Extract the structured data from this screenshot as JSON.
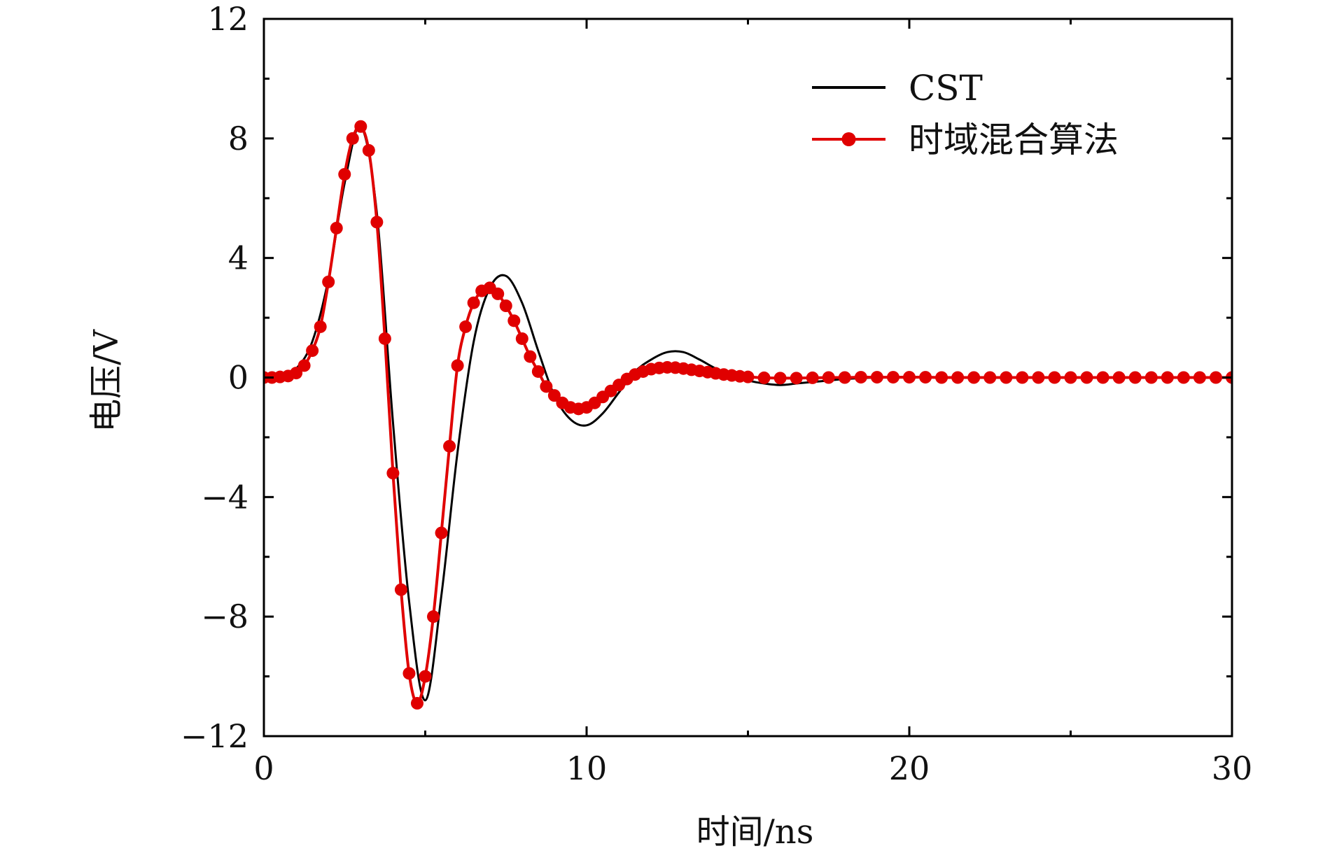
{
  "chart_data": {
    "type": "line",
    "xlabel": "时间/ns",
    "ylabel": "电压/V",
    "xlim": [
      0,
      30
    ],
    "ylim": [
      -12,
      12
    ],
    "x_ticks": [
      0,
      10,
      20,
      30
    ],
    "y_ticks": [
      -12,
      -8,
      -4,
      0,
      4,
      8,
      12
    ],
    "x_tick_labels": [
      "0",
      "10",
      "20",
      "30"
    ],
    "y_tick_labels": [
      "−12",
      "−8",
      "−4",
      "0",
      "4",
      "8",
      "12"
    ],
    "grid": false,
    "legend_position": "top-right",
    "series": [
      {
        "name": "CST",
        "color": "#000000",
        "marker": "none",
        "x": [
          0,
          0.5,
          1.0,
          1.5,
          2.0,
          2.5,
          3.0,
          3.5,
          4.0,
          4.5,
          5.0,
          5.5,
          6.0,
          6.5,
          7.0,
          7.5,
          8.0,
          8.5,
          9.0,
          9.5,
          10.0,
          10.5,
          11.0,
          11.5,
          12.0,
          12.5,
          13.0,
          13.5,
          14.0,
          14.5,
          15.0,
          15.5,
          16.0,
          16.5,
          17.0,
          17.5,
          18.0,
          19.0,
          20.0,
          22.0,
          25.0,
          28.0,
          30.0
        ],
        "y": [
          0.0,
          0.05,
          0.3,
          1.2,
          3.3,
          6.5,
          8.4,
          5.5,
          -1.5,
          -7.5,
          -10.8,
          -7.3,
          -2.5,
          1.2,
          3.0,
          3.4,
          2.5,
          0.9,
          -0.6,
          -1.4,
          -1.6,
          -1.2,
          -0.5,
          0.2,
          0.6,
          0.85,
          0.85,
          0.6,
          0.3,
          0.05,
          -0.1,
          -0.2,
          -0.25,
          -0.2,
          -0.15,
          -0.1,
          -0.05,
          0.0,
          0.02,
          0.0,
          0.0,
          0.0,
          0.0
        ]
      },
      {
        "name": "时域混合算法",
        "color": "#e00000",
        "marker": "circle",
        "x": [
          0,
          0.25,
          0.5,
          0.75,
          1.0,
          1.25,
          1.5,
          1.75,
          2.0,
          2.25,
          2.5,
          2.75,
          3.0,
          3.25,
          3.5,
          3.75,
          4.0,
          4.25,
          4.5,
          4.75,
          5.0,
          5.25,
          5.5,
          5.75,
          6.0,
          6.25,
          6.5,
          6.75,
          7.0,
          7.25,
          7.5,
          7.75,
          8.0,
          8.25,
          8.5,
          8.75,
          9.0,
          9.25,
          9.5,
          9.75,
          10.0,
          10.25,
          10.5,
          10.75,
          11.0,
          11.25,
          11.5,
          11.75,
          12.0,
          12.25,
          12.5,
          12.75,
          13.0,
          13.25,
          13.5,
          13.75,
          14.0,
          14.25,
          14.5,
          14.75,
          15.0,
          15.5,
          16.0,
          16.5,
          17.0,
          17.5,
          18.0,
          18.5,
          19.0,
          19.5,
          20.0,
          20.5,
          21.0,
          21.5,
          22.0,
          22.5,
          23.0,
          23.5,
          24.0,
          24.5,
          25.0,
          25.5,
          26.0,
          26.5,
          27.0,
          27.5,
          28.0,
          28.5,
          29.0,
          29.5,
          30.0
        ],
        "y": [
          0.0,
          0.0,
          0.02,
          0.05,
          0.15,
          0.4,
          0.9,
          1.7,
          3.2,
          5.0,
          6.8,
          8.0,
          8.4,
          7.6,
          5.2,
          1.3,
          -3.2,
          -7.1,
          -9.9,
          -10.9,
          -10.0,
          -8.0,
          -5.2,
          -2.3,
          0.4,
          1.7,
          2.5,
          2.9,
          3.0,
          2.8,
          2.4,
          1.9,
          1.3,
          0.7,
          0.2,
          -0.3,
          -0.6,
          -0.85,
          -1.0,
          -1.05,
          -1.0,
          -0.85,
          -0.65,
          -0.45,
          -0.25,
          -0.05,
          0.1,
          0.2,
          0.28,
          0.32,
          0.34,
          0.33,
          0.3,
          0.26,
          0.22,
          0.18,
          0.14,
          0.1,
          0.07,
          0.04,
          0.02,
          -0.01,
          -0.02,
          -0.02,
          -0.01,
          0.0,
          0.0,
          0.01,
          0.01,
          0.01,
          0.01,
          0.01,
          0.0,
          0.0,
          0.0,
          0.0,
          0.0,
          0.0,
          0.0,
          0.0,
          0.0,
          0.0,
          0.0,
          0.0,
          0.0,
          0.0,
          0.0,
          0.0,
          0.0,
          0.0,
          0.0
        ]
      }
    ]
  }
}
